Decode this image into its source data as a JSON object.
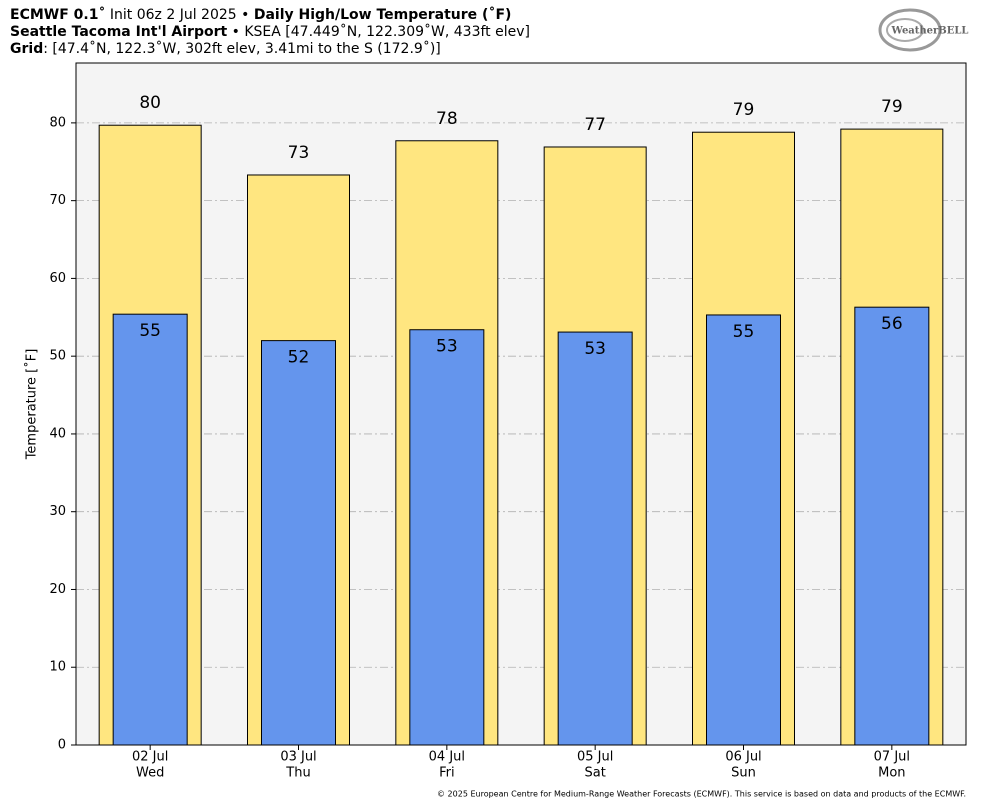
{
  "chart_data": {
    "type": "bar",
    "title_lines": [
      [
        {
          "text": "ECMWF 0.1˚",
          "bold": true
        },
        {
          "text": " Init 06z 2 Jul 2025 • ",
          "bold": false
        },
        {
          "text": "Daily High/Low Temperature (˚F)",
          "bold": true
        }
      ],
      [
        {
          "text": "Seattle Tacoma Int'l Airport",
          "bold": true
        },
        {
          "text": " • KSEA [47.449˚N, 122.309˚W, 433ft elev]",
          "bold": false
        }
      ],
      [
        {
          "text": "Grid",
          "bold": true
        },
        {
          "text": ": [47.4˚N, 122.3˚W, 302ft elev, 3.41mi to the S (172.9˚)]",
          "bold": false
        }
      ]
    ],
    "logo": "WeatherBELL",
    "ylabel": "Temperature [˚F]",
    "footer": "© 2025 European Centre for Medium-Range Weather Forecasts (ECMWF). This service is based on data and products of the ECMWF.",
    "categories": [
      "02 Jul",
      "03 Jul",
      "04 Jul",
      "05 Jul",
      "06 Jul",
      "07 Jul"
    ],
    "weekdays": [
      "Wed",
      "Thu",
      "Fri",
      "Sat",
      "Sun",
      "Mon"
    ],
    "series": [
      {
        "color": "#ffe680",
        "values": [
          79.7,
          73.3,
          77.7,
          76.9,
          78.8,
          79.2
        ],
        "value_labels": [
          "80",
          "73",
          "78",
          "77",
          "79",
          "79"
        ]
      },
      {
        "color": "#6495ed",
        "values": [
          55.4,
          52.0,
          53.4,
          53.1,
          55.3,
          56.3
        ],
        "value_labels": [
          "55",
          "52",
          "53",
          "53",
          "55",
          "56"
        ]
      }
    ],
    "ylim": [
      0,
      87.7
    ],
    "yticks": [
      0,
      10,
      20,
      30,
      40,
      50,
      60,
      70,
      80
    ],
    "grid": true,
    "background": "#f4f4f4"
  }
}
